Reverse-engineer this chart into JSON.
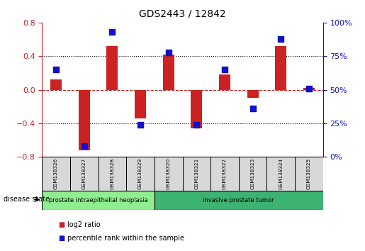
{
  "title": "GDS2443 / 12842",
  "samples": [
    "GSM138326",
    "GSM138327",
    "GSM138328",
    "GSM138329",
    "GSM138320",
    "GSM138321",
    "GSM138322",
    "GSM138323",
    "GSM138324",
    "GSM138325"
  ],
  "log2_ratio": [
    0.12,
    -0.72,
    0.52,
    -0.34,
    0.42,
    -0.46,
    0.18,
    -0.1,
    0.52,
    0.02
  ],
  "percentile_rank": [
    65,
    8,
    93,
    24,
    78,
    24,
    65,
    36,
    88,
    51
  ],
  "groups": [
    {
      "label": "prostate intraepithelial neoplasia",
      "samples": [
        0,
        1,
        2,
        3
      ],
      "color": "#90ee90"
    },
    {
      "label": "invasive prostate tumor",
      "samples": [
        4,
        5,
        6,
        7,
        8,
        9
      ],
      "color": "#3cb371"
    }
  ],
  "ylim_left": [
    -0.8,
    0.8
  ],
  "ylim_right": [
    0,
    100
  ],
  "yticks_left": [
    -0.8,
    -0.4,
    0.0,
    0.4,
    0.8
  ],
  "yticks_right": [
    0,
    25,
    50,
    75,
    100
  ],
  "bar_color": "#cc2222",
  "dot_color": "#1111cc",
  "zero_line_color": "#cc2222",
  "left_axis_color": "#cc2222",
  "right_axis_color": "#1111cc",
  "disease_state_label": "disease state",
  "legend_items": [
    "log2 ratio",
    "percentile rank within the sample"
  ],
  "bar_width": 0.4,
  "dot_size": 40
}
